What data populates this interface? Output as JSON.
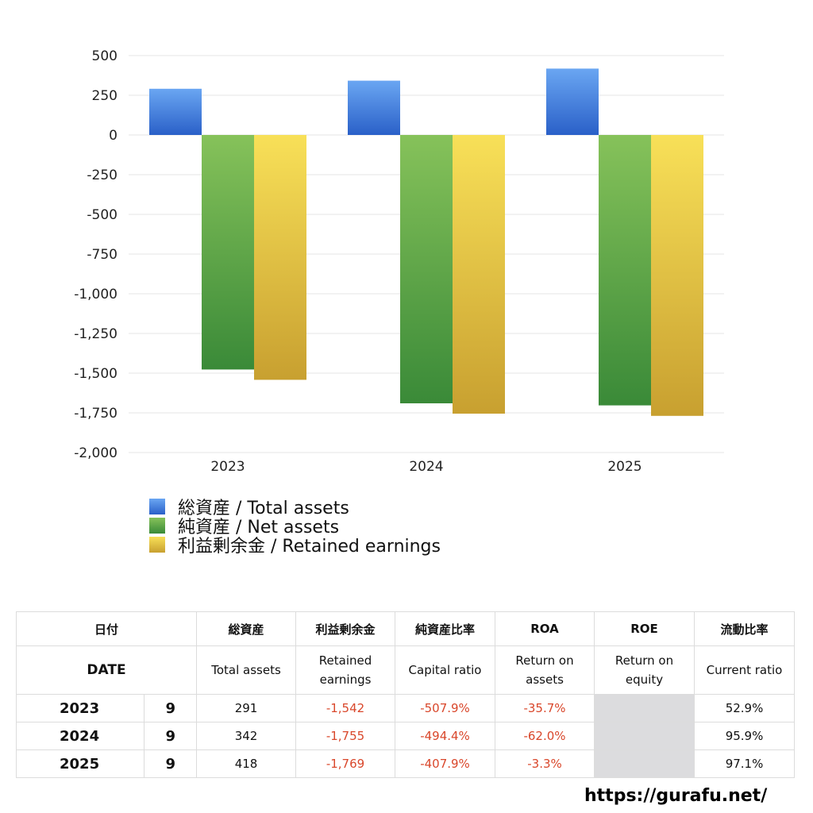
{
  "chart_data": {
    "type": "bar",
    "categories": [
      "2023",
      "2024",
      "2025"
    ],
    "series": [
      {
        "name": "総資産 / Total assets",
        "values": [
          291,
          342,
          418
        ],
        "color": "#3f7fdc"
      },
      {
        "name": "純資産 / Net assets",
        "values": [
          -1477,
          -1690,
          -1703
        ],
        "color": "#5aa646"
      },
      {
        "name": "利益剰余金 / Retained earnings",
        "values": [
          -1542,
          -1755,
          -1769
        ],
        "color": "#e2c43e"
      }
    ],
    "ylim": [
      -2000,
      500
    ],
    "yticks": [
      500,
      250,
      0,
      -250,
      -500,
      -750,
      -1000,
      -1250,
      -1500,
      -1750,
      -2000
    ],
    "ytick_labels": [
      "500",
      "250",
      "0",
      "-250",
      "-500",
      "-750",
      "-1,000",
      "-1,250",
      "-1,500",
      "-1,750",
      "-2,000"
    ],
    "grid": true,
    "legend_position": "bottom-left"
  },
  "table": {
    "headers_jp": [
      "日付",
      "総資産",
      "利益剰余金",
      "純資産比率",
      "ROA",
      "ROE",
      "流動比率"
    ],
    "headers_en": [
      "DATE",
      "Total assets",
      "Retained earnings",
      "Capital ratio",
      "Return on assets",
      "Return on equity",
      "Current ratio"
    ],
    "rows": [
      {
        "year": "2023",
        "month": "9",
        "total_assets": "291",
        "retained_earnings": "-1,542",
        "capital_ratio": "-507.9%",
        "roa": "-35.7%",
        "roe": "",
        "current_ratio": "52.9%"
      },
      {
        "year": "2024",
        "month": "9",
        "total_assets": "342",
        "retained_earnings": "-1,755",
        "capital_ratio": "-494.4%",
        "roa": "-62.0%",
        "roe": "",
        "current_ratio": "95.9%"
      },
      {
        "year": "2025",
        "month": "9",
        "total_assets": "418",
        "retained_earnings": "-1,769",
        "capital_ratio": "-407.9%",
        "roa": "-3.3%",
        "roe": "",
        "current_ratio": "97.1%"
      }
    ],
    "negative_color": "#d9472b"
  },
  "footer": {
    "url": "https://gurafu.net/"
  }
}
